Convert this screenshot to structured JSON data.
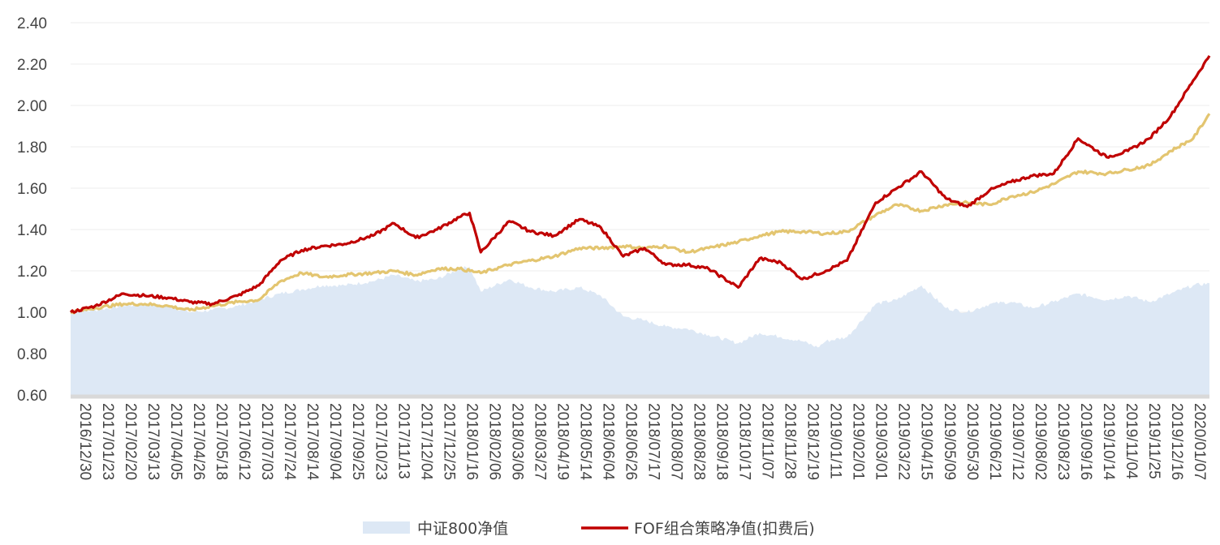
{
  "chart_data": {
    "type": "line",
    "title": "",
    "xlabel": "",
    "ylabel": "",
    "ylim": [
      0.6,
      2.4
    ],
    "yticks": [
      "0.60",
      "0.80",
      "1.00",
      "1.20",
      "1.40",
      "1.60",
      "1.80",
      "2.00",
      "2.20",
      "2.40"
    ],
    "grid": true,
    "legend_position": "bottom",
    "x_start": "2016/12/30",
    "x_end": "2020/01/23",
    "x_tick_labels": [
      "2016/12/30",
      "2017/01/23",
      "2017/02/20",
      "2017/03/13",
      "2017/04/05",
      "2017/04/26",
      "2017/05/18",
      "2017/06/12",
      "2017/07/03",
      "2017/07/24",
      "2017/08/14",
      "2017/09/04",
      "2017/09/25",
      "2017/10/23",
      "2017/11/13",
      "2017/12/04",
      "2017/12/25",
      "2018/01/16",
      "2018/02/06",
      "2018/03/06",
      "2018/03/27",
      "2018/04/19",
      "2018/05/14",
      "2018/06/04",
      "2018/06/26",
      "2018/07/17",
      "2018/08/07",
      "2018/08/28",
      "2018/09/18",
      "2018/10/17",
      "2018/11/07",
      "2018/11/28",
      "2018/12/19",
      "2019/01/11",
      "2019/02/01",
      "2019/03/01",
      "2019/03/22",
      "2019/04/15",
      "2019/05/09",
      "2019/05/30",
      "2019/06/21",
      "2019/07/12",
      "2019/08/02",
      "2019/08/23",
      "2019/09/16",
      "2019/10/14",
      "2019/11/04",
      "2019/11/25",
      "2019/12/16",
      "2020/01/07"
    ],
    "series": [
      {
        "name": "中证800净值",
        "style": "area",
        "color": "#dde8f5",
        "points": [
          [
            "2016/12/30",
            1.0
          ],
          [
            "2017/01/23",
            1.01
          ],
          [
            "2017/02/20",
            1.03
          ],
          [
            "2017/03/13",
            1.04
          ],
          [
            "2017/04/05",
            1.03
          ],
          [
            "2017/04/26",
            1.0
          ],
          [
            "2017/05/18",
            1.01
          ],
          [
            "2017/06/12",
            1.03
          ],
          [
            "2017/07/03",
            1.06
          ],
          [
            "2017/07/24",
            1.09
          ],
          [
            "2017/08/14",
            1.11
          ],
          [
            "2017/09/04",
            1.13
          ],
          [
            "2017/09/25",
            1.13
          ],
          [
            "2017/10/23",
            1.15
          ],
          [
            "2017/11/13",
            1.18
          ],
          [
            "2017/12/04",
            1.15
          ],
          [
            "2017/12/25",
            1.16
          ],
          [
            "2018/01/16",
            1.21
          ],
          [
            "2018/01/26",
            1.22
          ],
          [
            "2018/02/06",
            1.1
          ],
          [
            "2018/03/06",
            1.16
          ],
          [
            "2018/03/27",
            1.12
          ],
          [
            "2018/04/19",
            1.1
          ],
          [
            "2018/05/14",
            1.12
          ],
          [
            "2018/06/04",
            1.08
          ],
          [
            "2018/06/26",
            0.98
          ],
          [
            "2018/07/17",
            0.96
          ],
          [
            "2018/08/07",
            0.93
          ],
          [
            "2018/08/28",
            0.92
          ],
          [
            "2018/09/18",
            0.89
          ],
          [
            "2018/10/17",
            0.85
          ],
          [
            "2018/11/07",
            0.9
          ],
          [
            "2018/11/28",
            0.88
          ],
          [
            "2018/12/19",
            0.86
          ],
          [
            "2019/01/03",
            0.83
          ],
          [
            "2019/01/11",
            0.86
          ],
          [
            "2019/02/01",
            0.88
          ],
          [
            "2019/03/01",
            1.04
          ],
          [
            "2019/03/22",
            1.06
          ],
          [
            "2019/04/15",
            1.13
          ],
          [
            "2019/05/09",
            1.02
          ],
          [
            "2019/05/30",
            1.0
          ],
          [
            "2019/06/21",
            1.04
          ],
          [
            "2019/07/12",
            1.05
          ],
          [
            "2019/08/02",
            1.02
          ],
          [
            "2019/08/23",
            1.05
          ],
          [
            "2019/09/16",
            1.09
          ],
          [
            "2019/10/14",
            1.06
          ],
          [
            "2019/11/04",
            1.08
          ],
          [
            "2019/11/25",
            1.05
          ],
          [
            "2019/12/16",
            1.09
          ],
          [
            "2020/01/07",
            1.13
          ],
          [
            "2020/01/23",
            1.14
          ]
        ]
      },
      {
        "name": "FOF组合策略净值(扣费后)",
        "style": "line",
        "color": "#c00000",
        "points": [
          [
            "2016/12/30",
            1.0
          ],
          [
            "2017/01/23",
            1.03
          ],
          [
            "2017/02/20",
            1.09
          ],
          [
            "2017/03/13",
            1.08
          ],
          [
            "2017/04/05",
            1.07
          ],
          [
            "2017/04/26",
            1.05
          ],
          [
            "2017/05/18",
            1.04
          ],
          [
            "2017/06/12",
            1.08
          ],
          [
            "2017/07/03",
            1.13
          ],
          [
            "2017/07/24",
            1.25
          ],
          [
            "2017/08/14",
            1.3
          ],
          [
            "2017/09/04",
            1.32
          ],
          [
            "2017/09/25",
            1.33
          ],
          [
            "2017/10/23",
            1.37
          ],
          [
            "2017/11/13",
            1.43
          ],
          [
            "2017/12/04",
            1.36
          ],
          [
            "2017/12/25",
            1.4
          ],
          [
            "2018/01/16",
            1.46
          ],
          [
            "2018/01/26",
            1.48
          ],
          [
            "2018/02/06",
            1.29
          ],
          [
            "2018/03/06",
            1.44
          ],
          [
            "2018/03/27",
            1.39
          ],
          [
            "2018/04/19",
            1.37
          ],
          [
            "2018/05/14",
            1.45
          ],
          [
            "2018/06/04",
            1.41
          ],
          [
            "2018/06/26",
            1.27
          ],
          [
            "2018/07/17",
            1.31
          ],
          [
            "2018/08/07",
            1.23
          ],
          [
            "2018/08/28",
            1.23
          ],
          [
            "2018/09/18",
            1.21
          ],
          [
            "2018/10/17",
            1.12
          ],
          [
            "2018/11/07",
            1.26
          ],
          [
            "2018/11/28",
            1.24
          ],
          [
            "2018/12/19",
            1.16
          ],
          [
            "2019/01/11",
            1.2
          ],
          [
            "2019/02/01",
            1.25
          ],
          [
            "2019/03/01",
            1.53
          ],
          [
            "2019/03/22",
            1.6
          ],
          [
            "2019/04/15",
            1.68
          ],
          [
            "2019/05/09",
            1.55
          ],
          [
            "2019/05/30",
            1.51
          ],
          [
            "2019/06/21",
            1.59
          ],
          [
            "2019/07/12",
            1.63
          ],
          [
            "2019/08/02",
            1.66
          ],
          [
            "2019/08/23",
            1.67
          ],
          [
            "2019/09/16",
            1.84
          ],
          [
            "2019/10/14",
            1.75
          ],
          [
            "2019/11/04",
            1.78
          ],
          [
            "2019/11/25",
            1.84
          ],
          [
            "2019/12/16",
            1.95
          ],
          [
            "2020/01/07",
            2.12
          ],
          [
            "2020/01/23",
            2.24
          ]
        ]
      },
      {
        "style": "line",
        "color": "#e3c570",
        "points": [
          [
            "2016/12/30",
            1.0
          ],
          [
            "2017/01/23",
            1.02
          ],
          [
            "2017/02/20",
            1.04
          ],
          [
            "2017/03/13",
            1.04
          ],
          [
            "2017/04/05",
            1.03
          ],
          [
            "2017/04/26",
            1.01
          ],
          [
            "2017/05/18",
            1.03
          ],
          [
            "2017/06/12",
            1.05
          ],
          [
            "2017/07/03",
            1.06
          ],
          [
            "2017/07/24",
            1.15
          ],
          [
            "2017/08/14",
            1.19
          ],
          [
            "2017/09/04",
            1.17
          ],
          [
            "2017/09/25",
            1.18
          ],
          [
            "2017/10/23",
            1.19
          ],
          [
            "2017/11/13",
            1.2
          ],
          [
            "2017/12/04",
            1.18
          ],
          [
            "2017/12/25",
            1.21
          ],
          [
            "2018/01/16",
            1.21
          ],
          [
            "2018/02/06",
            1.19
          ],
          [
            "2018/03/06",
            1.23
          ],
          [
            "2018/03/27",
            1.25
          ],
          [
            "2018/04/19",
            1.27
          ],
          [
            "2018/05/14",
            1.31
          ],
          [
            "2018/06/04",
            1.31
          ],
          [
            "2018/06/26",
            1.32
          ],
          [
            "2018/07/17",
            1.31
          ],
          [
            "2018/08/07",
            1.32
          ],
          [
            "2018/08/28",
            1.29
          ],
          [
            "2018/09/18",
            1.31
          ],
          [
            "2018/10/17",
            1.34
          ],
          [
            "2018/11/07",
            1.37
          ],
          [
            "2018/11/28",
            1.39
          ],
          [
            "2018/12/19",
            1.39
          ],
          [
            "2019/01/11",
            1.38
          ],
          [
            "2019/02/01",
            1.39
          ],
          [
            "2019/03/01",
            1.47
          ],
          [
            "2019/03/22",
            1.52
          ],
          [
            "2019/04/15",
            1.49
          ],
          [
            "2019/05/09",
            1.52
          ],
          [
            "2019/05/30",
            1.53
          ],
          [
            "2019/06/21",
            1.52
          ],
          [
            "2019/07/12",
            1.56
          ],
          [
            "2019/08/02",
            1.58
          ],
          [
            "2019/08/23",
            1.62
          ],
          [
            "2019/09/16",
            1.68
          ],
          [
            "2019/10/14",
            1.67
          ],
          [
            "2019/11/04",
            1.69
          ],
          [
            "2019/11/25",
            1.71
          ],
          [
            "2019/12/16",
            1.78
          ],
          [
            "2020/01/07",
            1.84
          ],
          [
            "2020/01/23",
            1.96
          ]
        ]
      }
    ]
  }
}
